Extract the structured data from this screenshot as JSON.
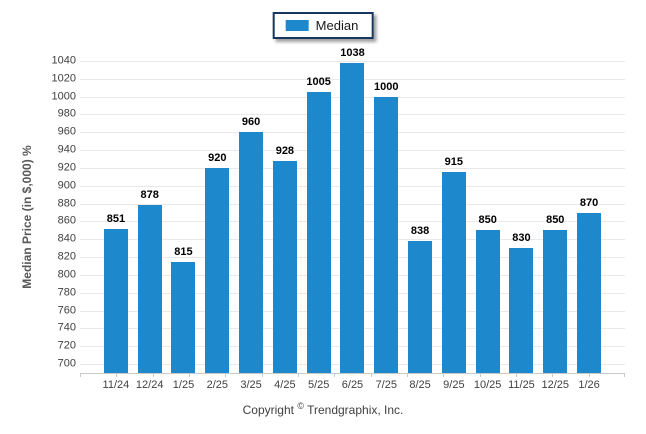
{
  "legend": {
    "label": "Median"
  },
  "colors": {
    "bar": "#1E88CC",
    "gridline": "#E9E9E9",
    "axis_line": "#C9C9C9",
    "legend_border": "#17375E",
    "tick_text": "#404040",
    "value_label_text": "#000000",
    "axis_title_text": "#595959"
  },
  "footer": {
    "copyright_prefix": "Copyright",
    "copyright_symbol": "©",
    "copyright_suffix": "Trendgraphix, Inc."
  },
  "chart_data": {
    "type": "bar",
    "title": "",
    "categories": [
      "11/24",
      "12/24",
      "1/25",
      "2/25",
      "3/25",
      "4/25",
      "5/25",
      "6/25",
      "7/25",
      "8/25",
      "9/25",
      "10/25",
      "11/25",
      "12/25",
      "1/26"
    ],
    "series": [
      {
        "name": "Median",
        "values": [
          851,
          878,
          815,
          920,
          960,
          928,
          1005,
          1038,
          1000,
          838,
          915,
          850,
          830,
          850,
          870
        ]
      }
    ],
    "xlabel": "",
    "ylabel": "Median Price (in $,000) %",
    "ylim": [
      690,
      1040
    ],
    "ytick_values": [
      1040,
      1020,
      1000,
      980,
      960,
      940,
      920,
      900,
      880,
      860,
      840,
      820,
      800,
      780,
      760,
      740,
      720,
      700
    ],
    "grid": true,
    "value_labels_shown": true,
    "legend_position": "top-center",
    "bar_color": "#1E88CC"
  }
}
